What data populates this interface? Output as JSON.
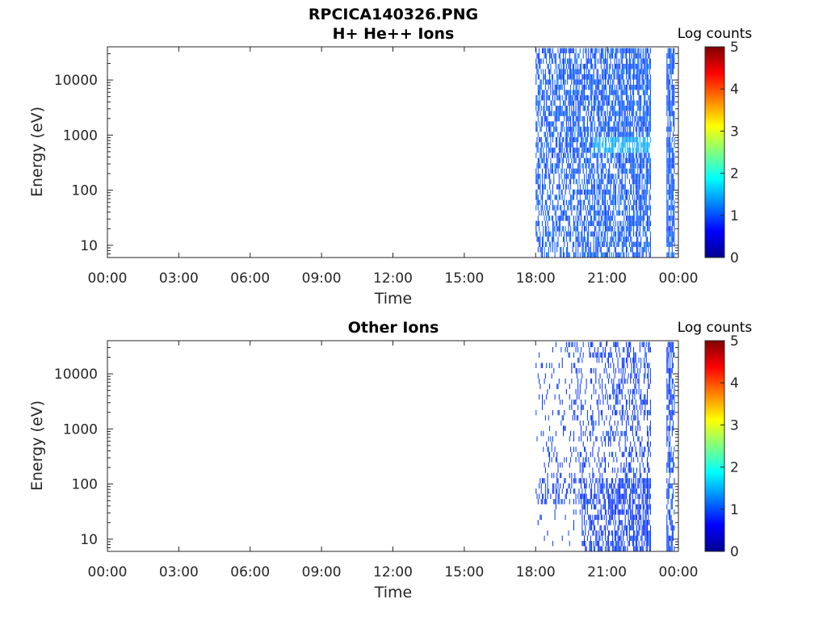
{
  "figure": {
    "file_title": "RPCICA140326.PNG"
  },
  "colorbar": {
    "label": "Log counts",
    "ticks": [
      "0",
      "1",
      "2",
      "3",
      "4",
      "5"
    ],
    "range": [
      0,
      5
    ],
    "colormap": "jet"
  },
  "chart_data": [
    {
      "type": "heatmap",
      "title": "H+ He++ Ions",
      "xlabel": "Time",
      "ylabel": "Energy (eV)",
      "x_ticks": [
        "00:00",
        "03:00",
        "06:00",
        "09:00",
        "12:00",
        "15:00",
        "18:00",
        "21:00",
        "00:00"
      ],
      "x_range_hours": [
        0,
        24
      ],
      "y_ticks": [
        "10",
        "100",
        "1000",
        "10000"
      ],
      "y_scale": "log",
      "y_range": [
        6,
        40000
      ],
      "z_label": "Log counts",
      "z_range": [
        0,
        5
      ],
      "data_segments": [
        {
          "start": "18:00",
          "end": "22:50",
          "energy_range": [
            6,
            38000
          ],
          "typical_log_counts": 0.8,
          "peak_log_counts": 1.6,
          "peak_energy_range": [
            500,
            900
          ],
          "peak_time": "20:30–22:50"
        },
        {
          "start": "23:30",
          "end": "23:50",
          "energy_range": [
            6,
            38000
          ],
          "typical_log_counts": 0.8
        }
      ]
    },
    {
      "type": "heatmap",
      "title": "Other Ions",
      "xlabel": "Time",
      "ylabel": "Energy (eV)",
      "x_ticks": [
        "00:00",
        "03:00",
        "06:00",
        "09:00",
        "12:00",
        "15:00",
        "18:00",
        "21:00",
        "00:00"
      ],
      "x_range_hours": [
        0,
        24
      ],
      "y_ticks": [
        "10",
        "100",
        "1000",
        "10000"
      ],
      "y_scale": "log",
      "y_range": [
        6,
        40000
      ],
      "z_label": "Log counts",
      "z_range": [
        0,
        5
      ],
      "data_segments": [
        {
          "start": "18:00",
          "end": "22:50",
          "energy_range": [
            6,
            38000
          ],
          "typical_log_counts": 0.5,
          "dense_energy_range": [
            6,
            120
          ]
        },
        {
          "start": "23:30",
          "end": "23:50",
          "energy_range": [
            6,
            38000
          ],
          "typical_log_counts": 0.6
        }
      ]
    }
  ]
}
